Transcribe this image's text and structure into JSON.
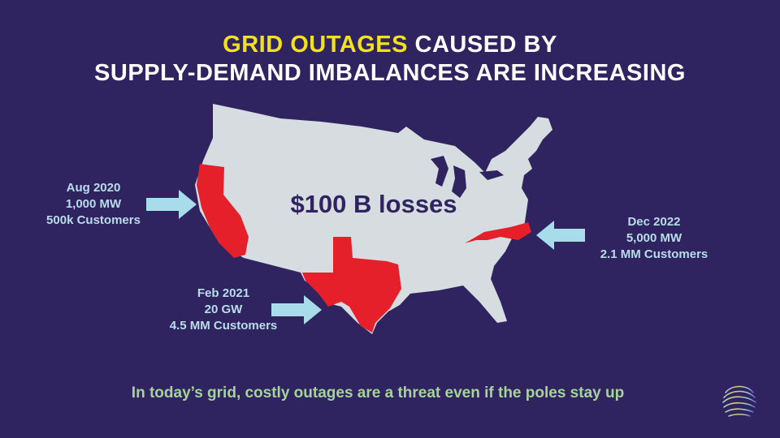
{
  "title": {
    "line1_highlight": "GRID OUTAGES",
    "line1_rest": " CAUSED BY",
    "line2": "SUPPLY-DEMAND IMBALANCES ARE INCREASING"
  },
  "map": {
    "center_label": "$100 B losses",
    "highlight_color": "#e5202a",
    "land_color": "#d6dcdf",
    "arrow_color": "#a9dcea"
  },
  "callouts": {
    "aug": {
      "line1": "Aug 2020",
      "line2": "1,000 MW",
      "line3": "500k Customers"
    },
    "feb": {
      "line1": "Feb 2021",
      "line2": "20 GW",
      "line3": "4.5 MM Customers"
    },
    "dec": {
      "line1": "Dec 2022",
      "line2": "5,000 MW",
      "line3": "2.1 MM Customers"
    }
  },
  "footer": "In today’s grid, costly outages are a threat even if the poles stay up",
  "logo": {
    "icon": "swirl-logo-icon"
  }
}
